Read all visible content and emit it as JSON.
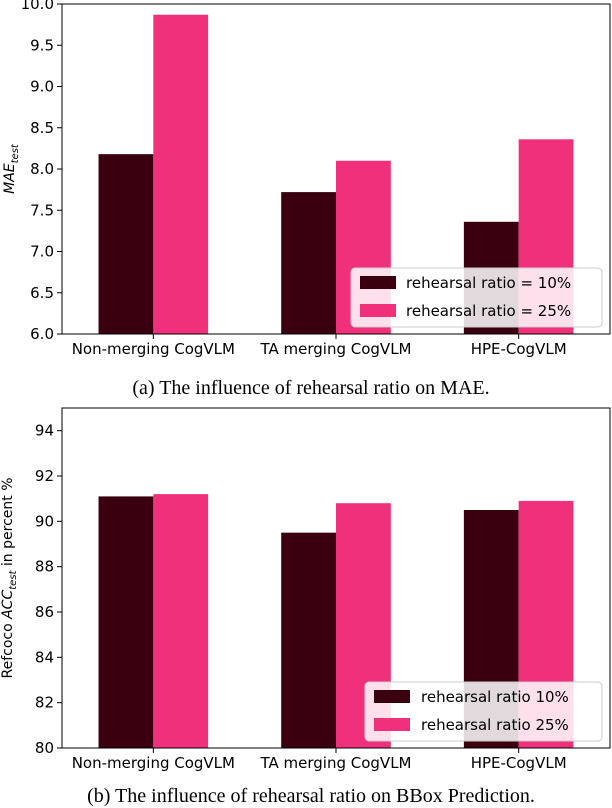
{
  "colors": {
    "series1": "#3b0010",
    "series2": "#f0307a"
  },
  "chart_data": [
    {
      "type": "bar",
      "categories": [
        "Non-merging CogVLM",
        "TA merging CogVLM",
        "HPE-CogVLM"
      ],
      "series": [
        {
          "name": "rehearsal ratio = 10%",
          "values": [
            8.18,
            7.72,
            7.36
          ]
        },
        {
          "name": "rehearsal ratio = 25%",
          "values": [
            9.87,
            8.1,
            8.36
          ]
        }
      ],
      "ylabel_main": "MAE",
      "ylabel_sub": "test",
      "ylim": [
        6.0,
        10.0
      ],
      "yticks": [
        "6.0",
        "6.5",
        "7.0",
        "7.5",
        "8.0",
        "8.5",
        "9.0",
        "9.5",
        "10.0"
      ],
      "legend_loc": "lower-right",
      "caption": "(a) The influence of rehearsal ratio on MAE."
    },
    {
      "type": "bar",
      "categories": [
        "Non-merging CogVLM",
        "TA merging CogVLM",
        "HPE-CogVLM"
      ],
      "series": [
        {
          "name": "rehearsal ratio 10%",
          "values": [
            91.1,
            89.5,
            90.5
          ]
        },
        {
          "name": "rehearsal ratio 25%",
          "values": [
            91.2,
            90.8,
            90.9
          ]
        }
      ],
      "ylabel_prefix": "Refcoco ",
      "ylabel_main": "ACC",
      "ylabel_sub": "test",
      "ylabel_suffix": " in percent %",
      "ylim": [
        80,
        95
      ],
      "yticks": [
        "80",
        "82",
        "84",
        "86",
        "88",
        "90",
        "92",
        "94"
      ],
      "legend_loc": "lower-right",
      "caption": "(b) The influence of rehearsal ratio on BBox Prediction."
    }
  ]
}
